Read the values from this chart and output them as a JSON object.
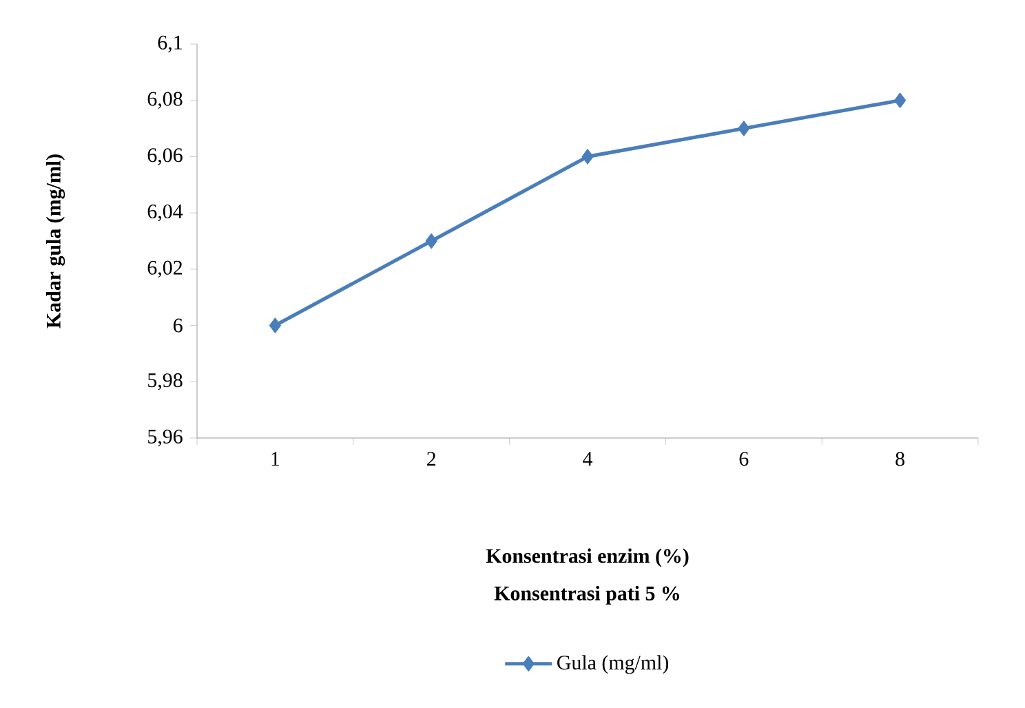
{
  "chart_data": {
    "type": "line",
    "xlabel": "Konsentrasi enzim (%)",
    "ylabel": "Kadar gula (mg/ml)",
    "annotations": [
      "Konsentrasi pati 5 %"
    ],
    "categories": [
      "1",
      "2",
      "4",
      "6",
      "8"
    ],
    "series": [
      {
        "name": "Gula (mg/ml)",
        "color": "#4a7ebb",
        "values": [
          6.0,
          6.03,
          6.06,
          6.07,
          6.08
        ]
      }
    ],
    "ylim": [
      5.96,
      6.1
    ],
    "yticks": [
      {
        "value": 5.96,
        "label": "5,96"
      },
      {
        "value": 5.98,
        "label": "5,98"
      },
      {
        "value": 6,
        "label": "6"
      },
      {
        "value": 6.02,
        "label": "6,02"
      },
      {
        "value": 6.04,
        "label": "6,04"
      },
      {
        "value": 6.06,
        "label": "6,06"
      },
      {
        "value": 6.08,
        "label": "6,08"
      },
      {
        "value": 6.1,
        "label": "6,1"
      }
    ],
    "marker": "diamond",
    "line_style": "solid",
    "legend": "bottom"
  }
}
